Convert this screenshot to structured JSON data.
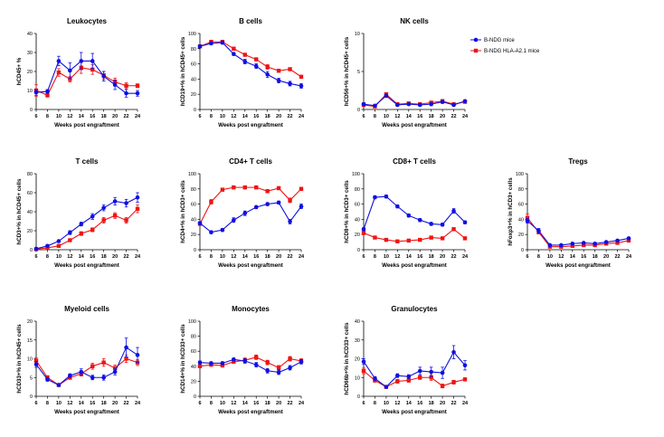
{
  "figure": {
    "x_label": "Weeks post engraftment",
    "legend": [
      {
        "name": "B-NDG mice",
        "color": "#1010e0",
        "marker": "circle"
      },
      {
        "name": "B-NDG HLA-A2.1 mice",
        "color": "#ee1515",
        "marker": "square"
      }
    ]
  },
  "chart_data": [
    {
      "type": "line",
      "title": "Leukocytes",
      "ylabel": "hCD45+ %",
      "ylim": [
        0,
        40
      ],
      "yticks": [
        0,
        10,
        20,
        30,
        40
      ],
      "x": [
        6,
        8,
        10,
        12,
        14,
        16,
        18,
        20,
        22,
        24
      ],
      "series": [
        {
          "name": "B-NDG mice",
          "values": [
            9,
            9.5,
            25.5,
            20.5,
            25.5,
            25.5,
            17.5,
            13,
            8.5,
            8.5
          ],
          "errors": [
            1.5,
            1,
            2.5,
            4,
            4.5,
            4,
            2.5,
            2.5,
            2,
            1.5
          ]
        },
        {
          "name": "B-NDG HLA-A2.1 mice",
          "values": [
            10,
            7.5,
            19.5,
            16,
            22,
            21,
            18,
            14.5,
            12.5,
            12.5
          ],
          "errors": [
            3,
            1,
            2,
            1.5,
            3,
            2.5,
            2,
            2,
            1.5,
            1
          ]
        }
      ]
    },
    {
      "type": "line",
      "title": "B cells",
      "ylabel": "hCD19+% in hCD45+ cells",
      "ylim": [
        0,
        100
      ],
      "yticks": [
        0,
        20,
        40,
        60,
        80,
        100
      ],
      "x": [
        6,
        8,
        10,
        12,
        14,
        16,
        18,
        20,
        22,
        24
      ],
      "series": [
        {
          "name": "B-NDG mice",
          "values": [
            83,
            87,
            88,
            73,
            63,
            57,
            46,
            38,
            34,
            31
          ],
          "errors": [
            2,
            2,
            2,
            2,
            3,
            3,
            4,
            3,
            3,
            3
          ]
        },
        {
          "name": "B-NDG HLA-A2.1 mice",
          "values": [
            83,
            89,
            89,
            80,
            72,
            66,
            56,
            51,
            53,
            43
          ],
          "errors": [
            2,
            2,
            2,
            2,
            2,
            2,
            3,
            2,
            2,
            2
          ]
        }
      ]
    },
    {
      "type": "line",
      "title": "NK  cells",
      "ylabel": "hCD56+% in hCD45+ cells",
      "ylim": [
        0,
        10
      ],
      "yticks": [
        0,
        5,
        10
      ],
      "x": [
        6,
        8,
        10,
        12,
        14,
        16,
        18,
        20,
        22,
        24
      ],
      "series": [
        {
          "name": "B-NDG mice",
          "values": [
            0.7,
            0.5,
            1.8,
            0.6,
            0.7,
            0.6,
            0.7,
            1,
            0.6,
            1.1
          ],
          "errors": [
            0.2,
            0.1,
            0.2,
            0.1,
            0.1,
            0.1,
            0.2,
            0.2,
            0.1,
            0.1
          ]
        },
        {
          "name": "B-NDG HLA-A2.1 mice",
          "values": [
            0.6,
            0.4,
            2,
            0.7,
            0.8,
            0.7,
            0.9,
            1.1,
            0.7,
            1
          ],
          "errors": [
            0.2,
            0.1,
            0.2,
            0.1,
            0.1,
            0.1,
            0.2,
            0.2,
            0.1,
            0.1
          ]
        }
      ]
    },
    {
      "type": "line",
      "title": "T cells",
      "ylabel": "hCD3+% in hCD45+ cells",
      "ylim": [
        0,
        80
      ],
      "yticks": [
        0,
        20,
        40,
        60,
        80
      ],
      "x": [
        6,
        8,
        10,
        12,
        14,
        16,
        18,
        20,
        22,
        24
      ],
      "series": [
        {
          "name": "B-NDG mice",
          "values": [
            1,
            4,
            9,
            18,
            27,
            35,
            44,
            51,
            49,
            55
          ],
          "errors": [
            0.5,
            1,
            1,
            2,
            2,
            3,
            3,
            4,
            4,
            5
          ]
        },
        {
          "name": "B-NDG HLA-A2.1 mice",
          "values": [
            0.5,
            2,
            4,
            10,
            17,
            21,
            31,
            36,
            31,
            43
          ],
          "errors": [
            0.3,
            0.5,
            1,
            1,
            2,
            2,
            3,
            3,
            3,
            4
          ]
        }
      ]
    },
    {
      "type": "line",
      "title": "CD4+ T cells",
      "ylabel": "hCD4+% in hCD3+ cells",
      "ylim": [
        0,
        100
      ],
      "yticks": [
        0,
        20,
        40,
        60,
        80,
        100
      ],
      "x": [
        6,
        8,
        10,
        12,
        14,
        16,
        18,
        20,
        22,
        24
      ],
      "series": [
        {
          "name": "B-NDG mice",
          "values": [
            35,
            23,
            26,
            39,
            48,
            56,
            60,
            62,
            37,
            57
          ],
          "errors": [
            2,
            2,
            2,
            3,
            3,
            2,
            2,
            2,
            3,
            3
          ]
        },
        {
          "name": "B-NDG HLA-A2.1 mice",
          "values": [
            34,
            63,
            79,
            82,
            82,
            82,
            77,
            81,
            65,
            80
          ],
          "errors": [
            2,
            3,
            2,
            2,
            2,
            2,
            2,
            2,
            3,
            2
          ]
        }
      ]
    },
    {
      "type": "line",
      "title": "CD8+ T cells",
      "ylabel": "hCD8+% in hCD3+ cells",
      "ylim": [
        0,
        100
      ],
      "yticks": [
        0,
        20,
        40,
        60,
        80,
        100
      ],
      "x": [
        6,
        8,
        10,
        12,
        14,
        16,
        18,
        20,
        22,
        24
      ],
      "series": [
        {
          "name": "B-NDG mice",
          "values": [
            27,
            69,
            70,
            57,
            45,
            39,
            34,
            33,
            51,
            36
          ],
          "errors": [
            2,
            2,
            2,
            2,
            2,
            2,
            2,
            2,
            3,
            2
          ]
        },
        {
          "name": "B-NDG HLA-A2.1 mice",
          "values": [
            22,
            16,
            13,
            11,
            12,
            13,
            16,
            15,
            27,
            15
          ],
          "errors": [
            2,
            1,
            1,
            1,
            1,
            1,
            2,
            1,
            2,
            1
          ]
        }
      ]
    },
    {
      "type": "line",
      "title": "Tregs",
      "ylabel": "hFoxp3+% in hCD3+ cells",
      "ylim": [
        0,
        100
      ],
      "yticks": [
        0,
        20,
        40,
        60,
        80,
        100
      ],
      "x": [
        6,
        8,
        10,
        12,
        14,
        16,
        18,
        20,
        22,
        24
      ],
      "series": [
        {
          "name": "B-NDG mice",
          "values": [
            38,
            25,
            6,
            6,
            8,
            9,
            8,
            10,
            12,
            15
          ],
          "errors": [
            3,
            3,
            1,
            1,
            1,
            1,
            1,
            1,
            1,
            1
          ]
        },
        {
          "name": "B-NDG HLA-A2.1 mice",
          "values": [
            42,
            23,
            4,
            4,
            5,
            6,
            6,
            8,
            9,
            12
          ],
          "errors": [
            5,
            2,
            1,
            1,
            1,
            1,
            1,
            1,
            1,
            1
          ]
        }
      ]
    },
    {
      "type": "line",
      "title": "Myeloid cells",
      "ylabel": "hCD33+% in hCD45+ cells",
      "ylim": [
        0,
        20
      ],
      "yticks": [
        0,
        5,
        10,
        15,
        20
      ],
      "x": [
        6,
        8,
        10,
        12,
        14,
        16,
        18,
        20,
        22,
        24
      ],
      "series": [
        {
          "name": "B-NDG mice",
          "values": [
            8.5,
            4.5,
            3,
            5.5,
            6.5,
            5,
            5,
            6.5,
            13,
            11
          ],
          "errors": [
            0.8,
            0.5,
            0.3,
            0.5,
            0.8,
            0.6,
            0.7,
            0.8,
            2.5,
            2
          ]
        },
        {
          "name": "B-NDG HLA-A2.1 mice",
          "values": [
            9.5,
            5,
            3,
            5,
            6,
            8,
            9,
            7.5,
            10,
            9
          ],
          "errors": [
            0.8,
            0.5,
            0.3,
            0.5,
            0.6,
            0.8,
            1,
            0.8,
            1,
            0.8
          ]
        }
      ]
    },
    {
      "type": "line",
      "title": "Monocytes",
      "ylabel": "hCD14+% in hCD33+ cells",
      "ylim": [
        0,
        100
      ],
      "yticks": [
        0,
        20,
        40,
        60,
        80,
        100
      ],
      "x": [
        6,
        8,
        10,
        12,
        14,
        16,
        18,
        20,
        22,
        24
      ],
      "series": [
        {
          "name": "B-NDG mice",
          "values": [
            45,
            44,
            44,
            49,
            47,
            42,
            34,
            32,
            38,
            46
          ],
          "errors": [
            2,
            2,
            2,
            2,
            3,
            3,
            3,
            3,
            3,
            3
          ]
        },
        {
          "name": "B-NDG HLA-A2.1 mice",
          "values": [
            40,
            42,
            41,
            46,
            48,
            52,
            45,
            38,
            50,
            47
          ],
          "errors": [
            2,
            2,
            2,
            2,
            3,
            3,
            3,
            3,
            3,
            3
          ]
        }
      ]
    },
    {
      "type": "line",
      "title": "Granulocytes",
      "ylabel": "hCD66b+% in hCD33+ cells",
      "ylim": [
        0,
        40
      ],
      "yticks": [
        0,
        10,
        20,
        30,
        40
      ],
      "x": [
        6,
        8,
        10,
        12,
        14,
        16,
        18,
        20,
        22,
        24
      ],
      "series": [
        {
          "name": "B-NDG mice",
          "values": [
            18.5,
            9.5,
            5,
            11,
            10.5,
            13.5,
            13,
            12.5,
            23.5,
            16.5
          ],
          "errors": [
            1.5,
            1,
            0.5,
            1,
            1,
            2,
            2.5,
            3,
            3.5,
            2.5
          ]
        },
        {
          "name": "B-NDG HLA-A2.1 mice",
          "values": [
            13.5,
            8.5,
            5,
            8,
            8.5,
            10,
            10,
            5.5,
            7.5,
            9
          ],
          "errors": [
            1.5,
            1,
            0.5,
            1,
            1,
            1,
            1.5,
            1,
            1,
            0.8
          ]
        }
      ]
    }
  ]
}
